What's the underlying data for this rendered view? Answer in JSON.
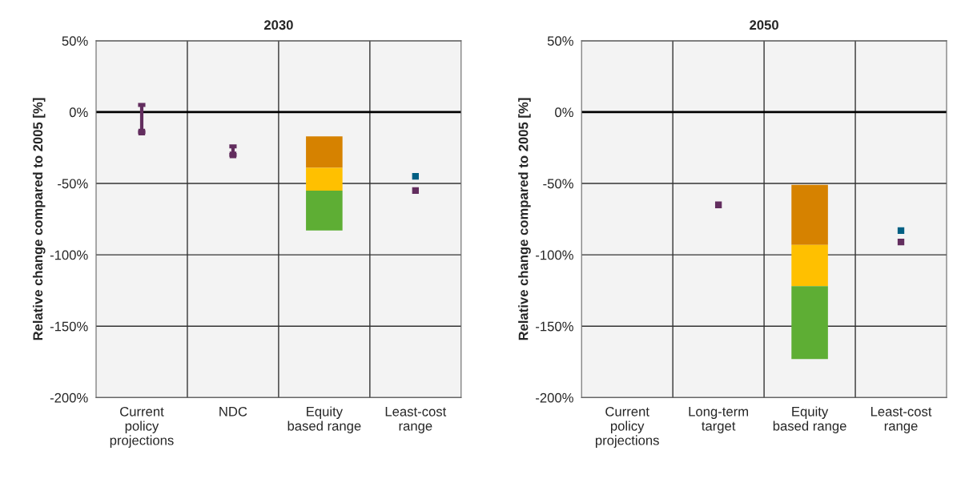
{
  "chart_data": [
    {
      "type": "bar",
      "title": "2030",
      "ylabel": "Relative change compared to 2005 [%]",
      "categories": [
        "Current\npolicy\nprojections",
        "NDC",
        "Equity\nbased range",
        "Least-cost\nrange"
      ],
      "ylim": [
        -200,
        50
      ],
      "yticks": [
        {
          "value": -200,
          "label": "-200%"
        },
        {
          "value": -150,
          "label": "-150%"
        },
        {
          "value": -100,
          "label": "-100%"
        },
        {
          "value": -50,
          "label": "-50%"
        },
        {
          "value": 0,
          "label": "0%"
        },
        {
          "value": 50,
          "label": "50%"
        }
      ],
      "grid": "y",
      "legend": false,
      "ref_lines": [
        {
          "axis": "y",
          "value": 0,
          "color": "#000000"
        }
      ],
      "series": [
        {
          "color": "#d68200",
          "base": [
            null,
            null,
            -39,
            null
          ],
          "values": [
            null,
            null,
            22,
            null
          ]
        },
        {
          "color": "#ffc000",
          "base": [
            null,
            null,
            -55,
            null
          ],
          "values": [
            null,
            null,
            16,
            null
          ]
        },
        {
          "color": "#5eae34",
          "base": [
            null,
            null,
            -83,
            null
          ],
          "values": [
            null,
            null,
            28,
            null
          ]
        },
        {
          "type": "scatter",
          "marker": "square",
          "color": "#622d5e",
          "values": [
            -14,
            -30,
            null,
            -55
          ],
          "errors": [
            [
              -14,
              5
            ],
            [
              -30,
              -24
            ],
            null,
            null
          ]
        },
        {
          "type": "scatter",
          "marker": "square",
          "color": "#005f83",
          "values": [
            null,
            null,
            null,
            -45
          ]
        }
      ]
    },
    {
      "type": "bar",
      "title": "2050",
      "ylabel": "Relative change compared to 2005 [%]",
      "categories": [
        "Current\npolicy\nprojections",
        "Long-term\ntarget",
        "Equity\nbased range",
        "Least-cost\nrange"
      ],
      "ylim": [
        -200,
        50
      ],
      "yticks": [
        {
          "value": -200,
          "label": "-200%"
        },
        {
          "value": -150,
          "label": "-150%"
        },
        {
          "value": -100,
          "label": "-100%"
        },
        {
          "value": -50,
          "label": "-50%"
        },
        {
          "value": 0,
          "label": "0%"
        },
        {
          "value": 50,
          "label": "50%"
        }
      ],
      "grid": "y",
      "legend": false,
      "ref_lines": [
        {
          "axis": "y",
          "value": 0,
          "color": "#000000"
        }
      ],
      "series": [
        {
          "color": "#d68200",
          "base": [
            null,
            null,
            -93,
            null
          ],
          "values": [
            null,
            null,
            42,
            null
          ]
        },
        {
          "color": "#ffc000",
          "base": [
            null,
            null,
            -122,
            null
          ],
          "values": [
            null,
            null,
            29,
            null
          ]
        },
        {
          "color": "#5eae34",
          "base": [
            null,
            null,
            -173,
            null
          ],
          "values": [
            null,
            null,
            51,
            null
          ]
        },
        {
          "type": "scatter",
          "marker": "square",
          "color": "#622d5e",
          "values": [
            null,
            -65,
            null,
            -91
          ]
        },
        {
          "type": "scatter",
          "marker": "square",
          "color": "#005f83",
          "values": [
            null,
            null,
            null,
            -83
          ]
        }
      ]
    }
  ]
}
